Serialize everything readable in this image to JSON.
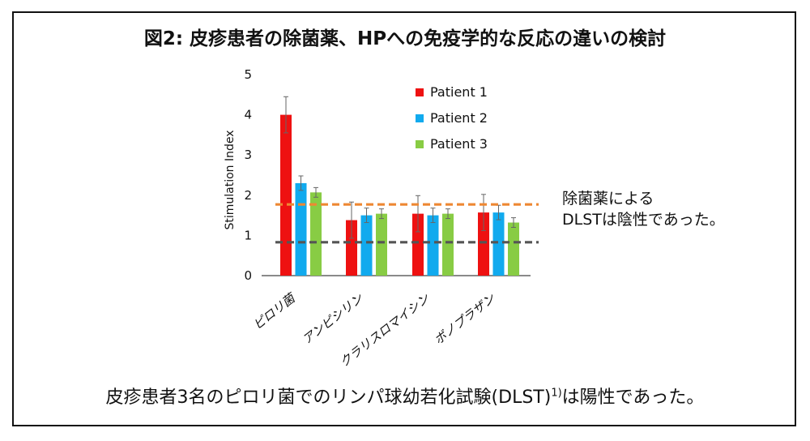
{
  "slide": {
    "title": "図2: 皮疹患者の除菌薬、HPへの免疫学的な反応の違いの検討",
    "caption_main": "皮疹患者3名のピロリ菌でのリンパ球幼若化試験(DLST)",
    "caption_sup": "1)",
    "caption_tail": "は陽性であった。",
    "note_line1": "除菌薬による",
    "note_line2": "DLSTは陰性であった。"
  },
  "chart_data": {
    "type": "bar",
    "title": "",
    "xlabel": "",
    "ylabel": "Stimulation Index",
    "ylim": [
      0,
      5
    ],
    "yticks": [
      "0",
      "1",
      "2",
      "3",
      "4",
      "5"
    ],
    "categories": [
      "ピロリ菌",
      "アンピシリン",
      "クラリスロマイシン",
      "ボノプラザン"
    ],
    "series": [
      {
        "name": "Patient 1",
        "color": "#ee1111",
        "values": [
          4.0,
          1.38,
          1.54,
          1.57
        ],
        "errors": [
          0.45,
          0.45,
          0.45,
          0.45
        ]
      },
      {
        "name": "Patient 2",
        "color": "#11aaee",
        "values": [
          2.3,
          1.5,
          1.5,
          1.57
        ],
        "errors": [
          0.18,
          0.18,
          0.18,
          0.18
        ]
      },
      {
        "name": "Patient 3",
        "color": "#88cc44",
        "values": [
          2.07,
          1.54,
          1.54,
          1.32
        ],
        "errors": [
          0.12,
          0.12,
          0.12,
          0.12
        ]
      }
    ],
    "reference_lines": [
      {
        "value": 1.77,
        "color": "#ee8833"
      },
      {
        "value": 0.83,
        "color": "#555555"
      }
    ],
    "grid": false,
    "legend_position": "top-right"
  }
}
